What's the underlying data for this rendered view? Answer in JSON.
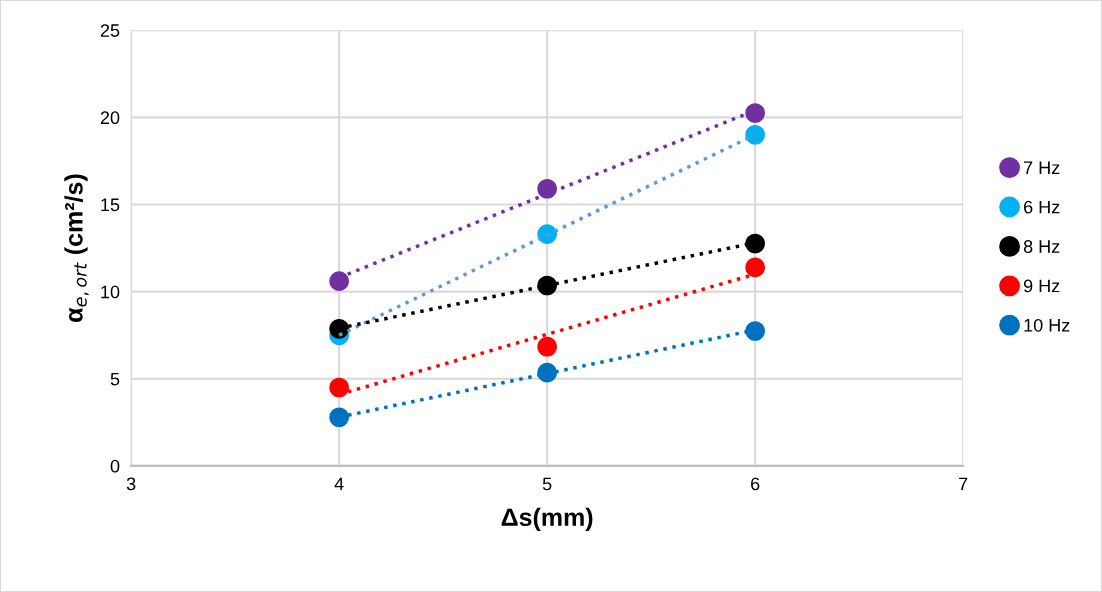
{
  "chart_data": {
    "type": "scatter",
    "xlabel": "Δs(mm)",
    "ylabel": "α$_{e,ort}$ (cm²/s)",
    "xlim": [
      3,
      7
    ],
    "xticks": [
      3,
      4,
      5,
      6,
      7
    ],
    "ylim": [
      0,
      25
    ],
    "yticks": [
      0,
      5,
      10,
      15,
      20,
      25
    ],
    "x": [
      4,
      5,
      6
    ],
    "grid": true,
    "legend": "right",
    "marker": "circle",
    "series": [
      {
        "name": "7 Hz",
        "color": "#7030a0",
        "values": [
          10.6,
          15.9,
          20.25
        ]
      },
      {
        "name": "6 Hz",
        "color": "#00b0f0",
        "values": [
          7.5,
          13.3,
          19.0
        ]
      },
      {
        "name": "8 Hz",
        "color": "#000000",
        "values": [
          7.87,
          10.35,
          12.76
        ]
      },
      {
        "name": "9 Hz",
        "color": "#ff0000",
        "values": [
          4.5,
          6.84,
          11.39
        ]
      },
      {
        "name": "10 Hz",
        "color": "#0070c0",
        "values": [
          2.79,
          5.35,
          7.74
        ]
      },
      {
        "type": "line",
        "line_style": "dotted",
        "marker": "none",
        "color": "#7030a0",
        "x": [
          4,
          5,
          6
        ],
        "values": [
          10.8,
          15.6,
          20.4
        ]
      },
      {
        "type": "line",
        "line_style": "dotted",
        "marker": "none",
        "color": "#5b9bd5",
        "x": [
          4,
          5,
          6
        ],
        "values": [
          7.5,
          13.25,
          19.0
        ]
      },
      {
        "type": "line",
        "line_style": "dotted",
        "marker": "none",
        "color": "#000000",
        "x": [
          4,
          5,
          6
        ],
        "values": [
          7.9,
          10.35,
          12.8
        ]
      },
      {
        "type": "line",
        "line_style": "dotted",
        "marker": "none",
        "color": "#ff0000",
        "x": [
          4,
          5,
          6
        ],
        "values": [
          4.1,
          7.55,
          11.0
        ]
      },
      {
        "type": "line",
        "line_style": "dotted",
        "marker": "none",
        "color": "#0070c0",
        "x": [
          4,
          5,
          6
        ],
        "values": [
          2.8,
          5.3,
          7.8
        ]
      }
    ]
  }
}
